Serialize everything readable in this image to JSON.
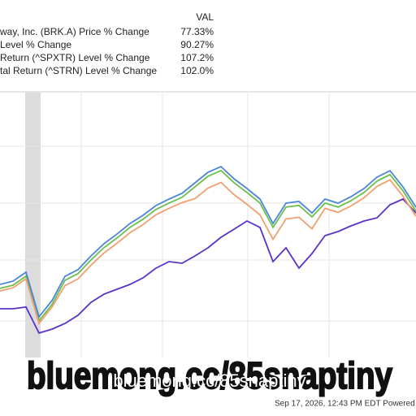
{
  "legend_header": "VAL",
  "chart_data": {
    "type": "line",
    "ylim": [
      -50,
      150
    ],
    "series": [
      {
        "name": "way, Inc. (BRK.A) Price % Change",
        "legend_value": "77.33%",
        "color": "#4a86d8",
        "values": [
          5.4,
          7.8,
          14.6,
          -19.2,
          -6.9,
          11.5,
          16.5,
          26.9,
          36.2,
          43.5,
          51.5,
          57.7,
          65.1,
          70.0,
          74.3,
          82.3,
          90.3,
          94.6,
          85.4,
          78.0,
          70.0,
          51.5,
          66.9,
          68.2,
          59.5,
          70.0,
          66.9,
          71.8,
          78.0,
          86.6,
          91.5,
          79.2,
          63.8
        ]
      },
      {
        "name": "Level % Change",
        "legend_value": "90.27%",
        "color": "#f0a070",
        "values": [
          0.4,
          2.8,
          9.6,
          -24.2,
          -11.9,
          4.5,
          9.5,
          19.9,
          29.2,
          36.5,
          44.5,
          50.7,
          58.1,
          63.0,
          67.3,
          70.3,
          78.3,
          82.6,
          73.4,
          66.0,
          58.0,
          39.5,
          54.9,
          56.2,
          47.5,
          63.0,
          59.9,
          64.8,
          71.0,
          79.6,
          84.5,
          72.2,
          56.8
        ]
      },
      {
        "name": "Return (^SPXTR) Level % Change",
        "legend_value": "107.2%",
        "color": "#6cbf4a",
        "values": [
          2.4,
          4.8,
          11.6,
          -22.2,
          -9.9,
          8.5,
          13.5,
          23.9,
          33.2,
          40.5,
          48.5,
          54.7,
          62.1,
          67.0,
          71.3,
          79.3,
          87.3,
          91.6,
          82.4,
          75.0,
          67.0,
          48.5,
          63.9,
          65.2,
          56.5,
          67.0,
          63.9,
          68.8,
          75.0,
          83.6,
          88.5,
          76.2,
          60.8
        ]
      },
      {
        "name": "tal Return (^STRN) Level % Change",
        "legend_value": "102.0%",
        "color": "#5b32c8",
        "values": [
          -13.1,
          -13.1,
          -11.8,
          -31.5,
          -28.5,
          -24.2,
          -18.0,
          -8.2,
          -2.0,
          1.7,
          5.4,
          10.3,
          17.7,
          22.6,
          21.4,
          26.9,
          33.1,
          41.1,
          47.2,
          53.4,
          48.5,
          22.6,
          33.1,
          17.7,
          28.8,
          42.3,
          45.4,
          49.7,
          53.4,
          55.8,
          65.7,
          70.0,
          59.5
        ]
      }
    ]
  },
  "footer": "Sep 17, 2026, 12:43 PM EDT Powered b",
  "watermark": "bluemong.cc/85snaptiny"
}
